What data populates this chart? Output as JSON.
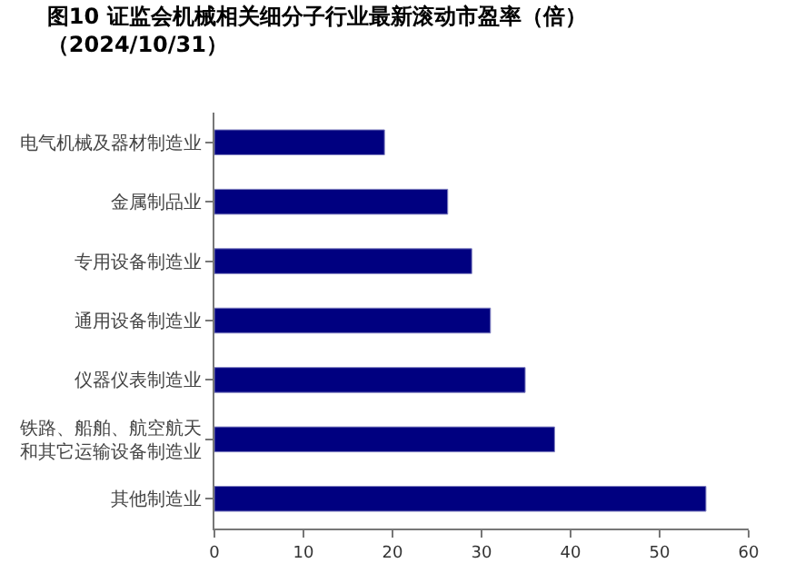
{
  "chart_data": {
    "type": "bar",
    "orientation": "horizontal",
    "title": "图10 证监会机械相关细分子行业最新滚动市盈率（倍）",
    "subtitle": "（2024/10/31）",
    "categories": [
      "电气机械及器材制造业",
      "金属制品业",
      "专用设备制造业",
      "通用设备制造业",
      "仪器仪表制造业",
      "铁路、船舶、航空航天和其它运输设备制造业",
      "其他制造业"
    ],
    "values": [
      19.1,
      26.2,
      28.9,
      31.0,
      34.9,
      38.2,
      55.2
    ],
    "color": "#000080",
    "xlim": [
      0,
      60
    ],
    "xticks": [
      0,
      10,
      20,
      30,
      40,
      50,
      60
    ],
    "grid": false,
    "legend": false
  }
}
